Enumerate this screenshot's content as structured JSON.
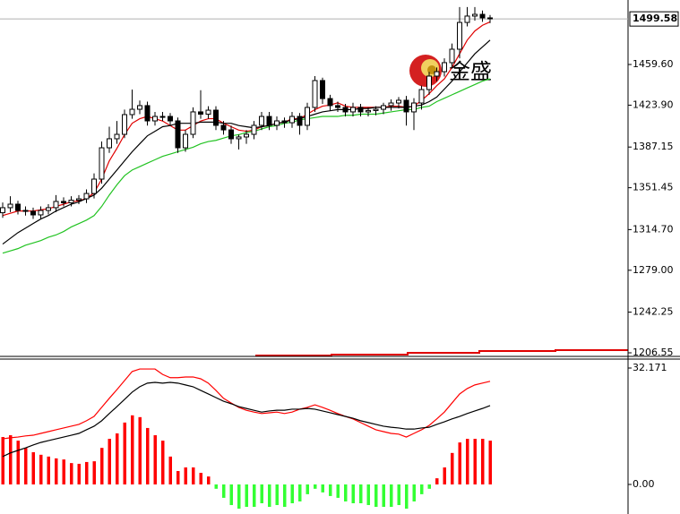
{
  "chart_data": [
    {
      "type": "candlestick",
      "open": [
        1329.5,
        1333.9,
        1337.0,
        1331.5,
        1330.7,
        1327.6,
        1331.5,
        1333.9,
        1339.4,
        1338.2,
        1340.5,
        1341.7,
        1346.4,
        1359.0,
        1386.5,
        1394.4,
        1398.3,
        1415.6,
        1420.3,
        1423.5,
        1410.1,
        1414.0,
        1414.0,
        1410.1,
        1386.5,
        1398.3,
        1418.0,
        1416.0,
        1419.5,
        1406.2,
        1402.2,
        1394.4,
        1396.0,
        1398.3,
        1406.2,
        1414.0,
        1406.2,
        1410.1,
        1408.5,
        1414.0,
        1406.2,
        1421.9,
        1445.5,
        1429.7,
        1423.5,
        1421.9,
        1418.0,
        1421.9,
        1418.0,
        1419.2,
        1420.3,
        1423.5,
        1425.8,
        1428.2,
        1418.0,
        1425.8,
        1437.6,
        1449.4,
        1453.3,
        1461.2,
        1473.0,
        1496.5,
        1502.1,
        1503.6,
        1500.5
      ],
      "high": [
        1338.5,
        1344,
        1340,
        1335,
        1334,
        1335,
        1337,
        1345,
        1343,
        1344,
        1345,
        1350,
        1364,
        1392,
        1405,
        1410,
        1420,
        1437.6,
        1428,
        1427,
        1418,
        1418,
        1417,
        1413,
        1402,
        1422,
        1437,
        1423,
        1423,
        1410,
        1406,
        1398,
        1402,
        1410,
        1418,
        1418,
        1414,
        1413,
        1418,
        1417,
        1426,
        1449.4,
        1448,
        1433,
        1427,
        1425,
        1426,
        1425,
        1422,
        1423,
        1426,
        1429,
        1431,
        1432,
        1430,
        1441,
        1453,
        1457,
        1465,
        1478,
        1510,
        1510,
        1510,
        1507,
        1503
      ],
      "low": [
        1325,
        1330,
        1328,
        1327,
        1324,
        1324,
        1328,
        1330,
        1335,
        1335,
        1337,
        1338,
        1342,
        1355,
        1382,
        1390,
        1395,
        1412,
        1416,
        1406,
        1406,
        1410,
        1406,
        1382,
        1383,
        1395,
        1412,
        1412,
        1402,
        1398,
        1390,
        1385,
        1390,
        1394,
        1402,
        1402,
        1402,
        1404,
        1404,
        1398,
        1402,
        1418,
        1425,
        1419,
        1418,
        1414,
        1414,
        1414,
        1414,
        1415,
        1416,
        1419,
        1421,
        1406,
        1402,
        1420,
        1433,
        1445,
        1449,
        1456,
        1465,
        1493,
        1498,
        1497,
        1496
      ],
      "close": [
        1333.9,
        1337.0,
        1331.5,
        1330.7,
        1327.6,
        1331.5,
        1333.9,
        1339.4,
        1338.2,
        1340.5,
        1341.7,
        1346.4,
        1359.0,
        1386.5,
        1394.4,
        1398.3,
        1415.6,
        1420.3,
        1423.5,
        1410.1,
        1414.0,
        1414.0,
        1410.1,
        1386.5,
        1398.3,
        1418.0,
        1416.0,
        1419.5,
        1406.2,
        1402.2,
        1394.4,
        1396.0,
        1398.3,
        1406.2,
        1414.0,
        1406.2,
        1410.1,
        1408.5,
        1414.0,
        1406.2,
        1421.9,
        1445.5,
        1429.7,
        1423.5,
        1421.9,
        1418.0,
        1421.9,
        1418.0,
        1419.2,
        1420.3,
        1423.5,
        1425.8,
        1428.2,
        1418.0,
        1425.8,
        1437.6,
        1449.4,
        1453.3,
        1461.2,
        1473.0,
        1496.5,
        1502.1,
        1503.6,
        1500.5,
        1499.7
      ],
      "up_color": "#ffffff",
      "down_color": "#000000",
      "series": [
        {
          "color": "#e00000",
          "values": [
            1327,
            1329,
            1331,
            1331,
            1331,
            1332,
            1333,
            1335,
            1337,
            1339,
            1340,
            1342,
            1347,
            1359,
            1375,
            1386,
            1398,
            1408,
            1412,
            1414,
            1412,
            1410,
            1406,
            1402,
            1402,
            1406,
            1410,
            1412,
            1412,
            1408,
            1405,
            1402,
            1401,
            1402,
            1405,
            1406,
            1408,
            1409,
            1412,
            1412,
            1416,
            1420,
            1423,
            1424,
            1426,
            1423,
            1422,
            1422,
            1422,
            1422,
            1422,
            1423,
            1423,
            1422,
            1423,
            1428,
            1434,
            1441,
            1447,
            1457,
            1469,
            1481,
            1489,
            1494,
            1497
          ]
        },
        {
          "color": "#000000",
          "values": [
            1302,
            1307,
            1312,
            1316,
            1320,
            1324,
            1327,
            1331,
            1334,
            1337,
            1339,
            1342,
            1345,
            1351,
            1359,
            1367,
            1375,
            1383,
            1390,
            1397,
            1401,
            1405,
            1406,
            1408,
            1408,
            1408,
            1409,
            1409,
            1409,
            1408,
            1408,
            1406,
            1405,
            1404,
            1405,
            1406,
            1408,
            1409,
            1411,
            1412,
            1414,
            1416,
            1418,
            1419,
            1420,
            1420,
            1420,
            1421,
            1421,
            1422,
            1422,
            1422,
            1422,
            1422,
            1423,
            1424,
            1427,
            1431,
            1438,
            1445,
            1453,
            1461,
            1469,
            1475,
            1481
          ]
        },
        {
          "color": "#22c322",
          "values": [
            1294,
            1296,
            1298,
            1301,
            1303,
            1305,
            1308,
            1310,
            1313,
            1317,
            1320,
            1323,
            1327,
            1335,
            1345,
            1354,
            1362,
            1367,
            1370,
            1373,
            1376,
            1379,
            1381,
            1383,
            1385,
            1387,
            1390,
            1392,
            1393,
            1395,
            1397,
            1398,
            1400,
            1401,
            1403,
            1405,
            1406,
            1408,
            1409,
            1411,
            1412,
            1413,
            1414,
            1414,
            1414,
            1415,
            1415,
            1416,
            1416,
            1416,
            1417,
            1418,
            1419,
            1420,
            1420,
            1422,
            1423,
            1427,
            1430,
            1433,
            1436,
            1439,
            1442,
            1445,
            1447
          ]
        }
      ],
      "ylim": [
        1203.4,
        1516.2
      ],
      "yticks": [
        {
          "value": 1459.6,
          "label": "1459.60"
        },
        {
          "value": 1423.9,
          "label": "1423.90"
        },
        1387.15,
        1351.45,
        {
          "value": 1314.7,
          "label": "1314.70"
        },
        {
          "value": 1279,
          "label": "1279.00"
        },
        1242.25,
        1206.55
      ],
      "current_price": 1499.58,
      "watermark": "金盛"
    },
    {
      "type": "macd",
      "values": [
        13.1,
        13.6,
        12.1,
        10.1,
        8.9,
        8.2,
        7.7,
        7.2,
        6.9,
        5.9,
        5.7,
        6.2,
        6.4,
        10.1,
        12.6,
        14.1,
        17.1,
        19.1,
        18.6,
        15.6,
        13.6,
        12.1,
        7.7,
        3.7,
        4.7,
        4.7,
        3.2,
        2.2,
        -1.2,
        -3.7,
        -5.7,
        -6.7,
        -6.2,
        -6.2,
        -5.2,
        -6.2,
        -5.7,
        -6.2,
        -5.2,
        -4.7,
        -2.7,
        -1.2,
        -2.2,
        -3.2,
        -3.7,
        -4.7,
        -5.2,
        -5.2,
        -5.7,
        -6.2,
        -6.2,
        -6.2,
        -5.7,
        -6.7,
        -4.7,
        -2.7,
        -1.2,
        1.7,
        4.7,
        8.7,
        11.6,
        12.6,
        12.6,
        12.6,
        12.1
      ],
      "up_color": "#ff0000",
      "down_color": "#33ff33",
      "series": [
        {
          "color": "#ff0000",
          "values": [
            12.6,
            12.9,
            13.1,
            13.4,
            13.6,
            14.1,
            14.6,
            15.1,
            15.6,
            16.1,
            16.6,
            17.6,
            18.8,
            21.3,
            23.8,
            26.2,
            28.7,
            31.2,
            31.9,
            31.9,
            31.9,
            30.4,
            29.5,
            29.5,
            29.7,
            29.7,
            29.2,
            28.0,
            26.0,
            23.8,
            22.5,
            21.3,
            20.5,
            20.0,
            19.6,
            19.8,
            20.0,
            19.6,
            20.0,
            20.8,
            21.3,
            22.0,
            21.3,
            20.5,
            19.6,
            18.8,
            18.1,
            17.1,
            16.1,
            15.1,
            14.6,
            14.1,
            13.9,
            13.1,
            14.1,
            15.1,
            16.3,
            18.1,
            20.0,
            22.5,
            25.0,
            26.5,
            27.5,
            28.0,
            28.5
          ]
        },
        {
          "color": "#000000",
          "values": [
            7.7,
            8.7,
            9.4,
            10.1,
            10.9,
            11.6,
            12.1,
            12.6,
            13.1,
            13.6,
            14.1,
            15.1,
            16.1,
            17.6,
            19.6,
            21.5,
            23.5,
            25.5,
            27.0,
            28.0,
            28.2,
            28.0,
            28.2,
            28.0,
            27.5,
            27.0,
            26.0,
            25.0,
            24.0,
            23.0,
            22.3,
            21.5,
            21.0,
            20.5,
            20.0,
            20.3,
            20.5,
            20.5,
            20.8,
            20.8,
            21.0,
            20.8,
            20.3,
            19.8,
            19.3,
            18.8,
            18.3,
            17.6,
            17.1,
            16.6,
            16.1,
            15.8,
            15.6,
            15.3,
            15.3,
            15.6,
            15.8,
            16.6,
            17.3,
            18.1,
            18.8,
            19.6,
            20.3,
            21.0,
            21.8
          ]
        }
      ],
      "ylim": [
        -8.17,
        34.89
      ],
      "yticks": [
        32.171,
        {
          "value": 0,
          "label": "0.00"
        }
      ]
    }
  ]
}
